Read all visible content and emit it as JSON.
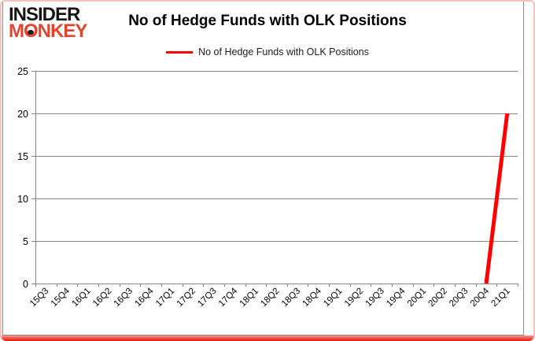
{
  "logo": {
    "line1": "INSIDER",
    "line2_pre": "M",
    "line2_o": "O",
    "line2_post": "NKEY"
  },
  "header": {
    "title": "No of Hedge Funds with OLK Positions"
  },
  "legend": {
    "label": "No of Hedge Funds with OLK Positions",
    "swatch_color": "#fe0000"
  },
  "colors": {
    "series_red": "#fe0000",
    "logo_red": "#e2452f",
    "axis_gray": "#878787",
    "border_pink": "#f5c2bd",
    "border_red": "#e2190a",
    "background": "#ffffff"
  },
  "chart_data": {
    "type": "line",
    "title": "No of Hedge Funds with OLK Positions",
    "xlabel": "",
    "ylabel": "",
    "categories": [
      "15Q3",
      "15Q4",
      "16Q1",
      "16Q2",
      "16Q3",
      "16Q4",
      "17Q1",
      "17Q2",
      "17Q3",
      "17Q4",
      "18Q1",
      "18Q2",
      "18Q3",
      "18Q4",
      "19Q1",
      "19Q2",
      "19Q3",
      "19Q4",
      "20Q1",
      "20Q2",
      "20Q3",
      "20Q4",
      "21Q1"
    ],
    "series": [
      {
        "name": "No of Hedge Funds with OLK Positions",
        "color": "#fe0000",
        "line_width": 5,
        "values": [
          null,
          null,
          null,
          null,
          null,
          null,
          null,
          null,
          null,
          null,
          null,
          null,
          null,
          null,
          null,
          null,
          null,
          null,
          null,
          null,
          null,
          0,
          20
        ]
      }
    ],
    "ylim": [
      0,
      25
    ],
    "yticks": [
      0,
      5,
      10,
      15,
      20,
      25
    ],
    "grid": true,
    "grid_color": "#878787",
    "legend_position": "top-center",
    "x_label_rotation": -45
  }
}
